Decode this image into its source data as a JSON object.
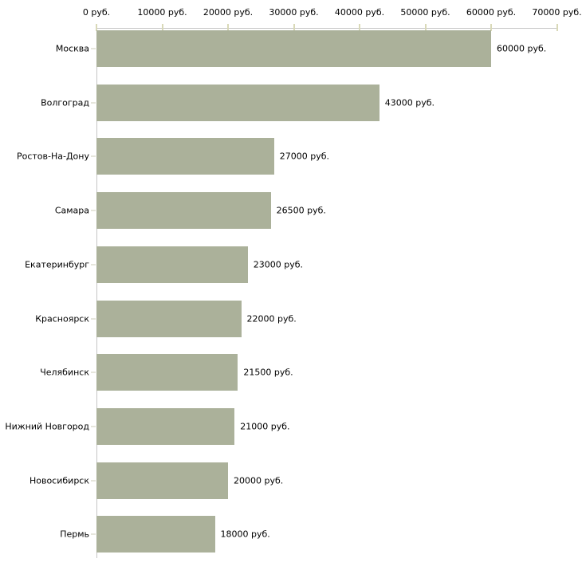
{
  "chart_data": {
    "type": "bar",
    "orientation": "horizontal",
    "title": "",
    "categories": [
      "Москва",
      "Волгоград",
      "Ростов-На-Дону",
      "Самара",
      "Екатеринбург",
      "Красноярск",
      "Челябинск",
      "Нижний Новгород",
      "Новосибирск",
      "Пермь"
    ],
    "values": [
      60000,
      43000,
      27000,
      26500,
      23000,
      22000,
      21500,
      21000,
      20000,
      18000
    ],
    "value_labels": [
      "60000 руб.",
      "43000 руб.",
      "27000 руб.",
      "26500 руб.",
      "23000 руб.",
      "22000 руб.",
      "21500 руб.",
      "21000 руб.",
      "20000 руб.",
      "18000 руб."
    ],
    "x_axis": {
      "position": "top",
      "min": 0,
      "max": 70000,
      "ticks": [
        0,
        10000,
        20000,
        30000,
        40000,
        50000,
        60000,
        70000
      ],
      "tick_labels": [
        "0 руб.",
        "10000 руб.",
        "20000 руб.",
        "30000 руб.",
        "40000 руб.",
        "50000 руб.",
        "60000 руб.",
        "70000 руб."
      ]
    },
    "legend": false,
    "grid": false,
    "colors": {
      "bar": "#abb19a",
      "axis_line": "#c6c6c6",
      "tick_mark": "#d9d9b8",
      "category_tick": "#ccccb8",
      "text": "#000000",
      "background": "#ffffff"
    }
  }
}
